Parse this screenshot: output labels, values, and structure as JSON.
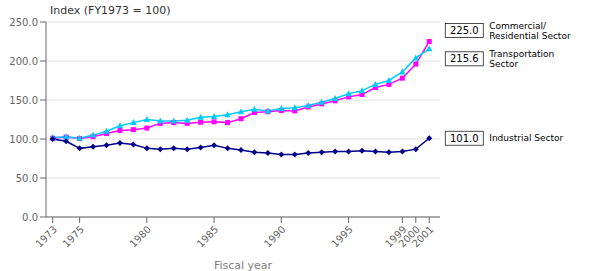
{
  "chart_data": {
    "type": "line",
    "y_annotation": "Index (FY1973 = 100)",
    "xlabel": "Fiscal year",
    "x": [
      1973,
      1974,
      1975,
      1976,
      1977,
      1978,
      1979,
      1980,
      1981,
      1982,
      1983,
      1984,
      1985,
      1986,
      1987,
      1988,
      1989,
      1990,
      1991,
      1992,
      1993,
      1994,
      1995,
      1996,
      1997,
      1998,
      1999,
      2000,
      2001
    ],
    "series": [
      {
        "name": "Commercial/\nResidential Sector",
        "color": "#FF00FF",
        "marker": "square",
        "values": [
          101.0,
          102.5,
          100.5,
          103.0,
          107.0,
          111.0,
          112.0,
          114.0,
          120.0,
          121.0,
          120.0,
          121.5,
          122.0,
          121.0,
          126.0,
          134.0,
          135.0,
          136.5,
          136.0,
          141.0,
          145.0,
          149.0,
          154.0,
          157.0,
          166.0,
          170.0,
          178.0,
          196.0,
          225.0
        ],
        "value_labels": [
          null,
          null,
          null,
          null,
          null,
          null,
          null,
          null,
          null,
          null,
          null,
          null,
          null,
          null,
          null,
          null,
          null,
          null,
          null,
          null,
          null,
          null,
          null,
          null,
          null,
          null,
          null,
          null,
          "225.0"
        ]
      },
      {
        "name": "Transportation\nSector",
        "color": "#00CCFF",
        "marker": "triangle",
        "values": [
          102.0,
          103.0,
          101.0,
          105.0,
          110.0,
          117.0,
          121.0,
          125.0,
          123.0,
          123.0,
          124.0,
          128.0,
          129.0,
          131.0,
          135.0,
          138.0,
          136.0,
          139.0,
          140.0,
          143.0,
          147.0,
          152.0,
          158.0,
          162.0,
          170.0,
          175.0,
          186.0,
          204.0,
          215.6
        ],
        "value_labels": [
          null,
          null,
          null,
          null,
          null,
          null,
          null,
          null,
          null,
          null,
          null,
          null,
          null,
          null,
          null,
          null,
          null,
          null,
          null,
          null,
          null,
          null,
          null,
          null,
          null,
          null,
          null,
          null,
          "215.6"
        ]
      },
      {
        "name": "Industrial Sector",
        "color": "#00008B",
        "marker": "diamond",
        "values": [
          100.0,
          97.0,
          88.0,
          90.0,
          92.0,
          95.0,
          93.0,
          88.0,
          87.0,
          88.0,
          87.0,
          89.0,
          92.0,
          88.0,
          86.0,
          83.0,
          82.0,
          80.0,
          80.0,
          82.0,
          83.0,
          84.0,
          84.0,
          85.0,
          84.0,
          83.0,
          84.0,
          87.0,
          101.0
        ],
        "value_labels": [
          null,
          null,
          null,
          null,
          null,
          null,
          null,
          null,
          null,
          null,
          null,
          null,
          null,
          null,
          null,
          null,
          null,
          null,
          null,
          null,
          null,
          null,
          null,
          null,
          null,
          null,
          null,
          null,
          "101.0"
        ]
      }
    ],
    "xlim": [
      1972.5,
      2001.8
    ],
    "xticks": [
      1973,
      1975,
      1980,
      1985,
      1990,
      1995,
      1999,
      2000,
      2001
    ],
    "ylim": [
      0.0,
      250.0
    ],
    "yticks": [
      {
        "value": 0.0,
        "label": "0.0"
      },
      {
        "value": 50.0,
        "label": "50.0"
      },
      {
        "value": 100.0,
        "label": "100.0"
      },
      {
        "value": 150.0,
        "label": "150.0"
      },
      {
        "value": 200.0,
        "label": "200.0"
      },
      {
        "value": 250.0,
        "label": "250.0"
      }
    ],
    "grid": "y"
  }
}
